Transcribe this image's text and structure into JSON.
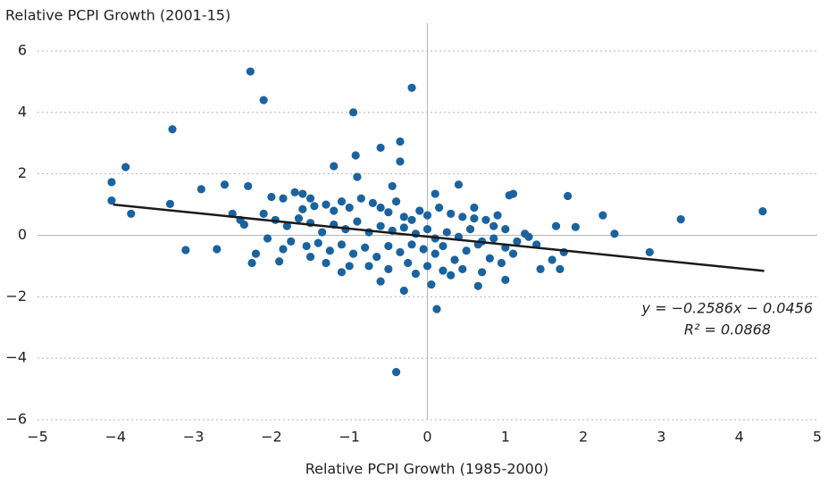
{
  "chart_data": {
    "type": "scatter",
    "y_axis_label": "Relative PCPI Growth (2001-15)",
    "x_axis_label": "Relative PCPI Growth (1985-2000)",
    "equation": "y = −0.2586x − 0.0456",
    "r_squared": "R² = 0.0868",
    "color": "#1a639f",
    "trend_color": "#1a1a1a",
    "grid": true,
    "xlim": [
      -5,
      5
    ],
    "ylim": [
      -6,
      6
    ],
    "xticks": [
      {
        "value": -5,
        "label": "−5"
      },
      {
        "value": -4,
        "label": "−4"
      },
      {
        "value": -3,
        "label": "−3"
      },
      {
        "value": -2,
        "label": "−2"
      },
      {
        "value": -1,
        "label": "−1"
      },
      0,
      1,
      2,
      3,
      4,
      5
    ],
    "yticks": [
      {
        "value": -6,
        "label": "−6"
      },
      {
        "value": -4,
        "label": "−4"
      },
      {
        "value": -2,
        "label": "−2"
      },
      0,
      2,
      4,
      6
    ],
    "trendline": {
      "x": [
        -4.03,
        4.32
      ],
      "values": [
        1.0,
        -1.16
      ]
    },
    "x": [
      -2.27,
      -2.1,
      -0.2,
      -0.95,
      -3.27,
      -0.35,
      -0.6,
      -0.35,
      -0.92,
      -3.87,
      -4.05,
      -4.05,
      -3.8,
      -3.3,
      -3.1,
      -2.9,
      -2.6,
      -2.7,
      -2.3,
      -2.25,
      -2.2,
      -1.9,
      -1.2,
      -0.9,
      -0.45,
      -0.4,
      0.12,
      -0.3,
      0.05,
      0.4,
      0.1,
      1.05,
      1.1,
      1.8,
      2.25,
      2.4,
      2.85,
      3.25,
      4.3,
      1.6,
      1.7,
      1.45,
      0.65,
      1.0,
      -0.6,
      -1.1,
      1.75,
      1.65,
      1.9,
      1.25,
      1.4,
      0.9,
      -2.0,
      -1.85,
      -1.7,
      -1.6,
      -1.5,
      -1.45,
      -1.3,
      -1.2,
      -1.1,
      -1.0,
      -0.85,
      -0.7,
      -0.6,
      -0.5,
      -0.3,
      -0.2,
      -0.1,
      0.0,
      0.15,
      0.3,
      0.45,
      0.6,
      0.75,
      0.85,
      1.0,
      -2.1,
      -1.95,
      -1.8,
      -1.65,
      -1.5,
      -1.35,
      -1.2,
      -1.05,
      -0.9,
      -0.75,
      -0.6,
      -0.45,
      -0.3,
      -0.15,
      0.0,
      0.1,
      0.25,
      0.4,
      0.55,
      0.7,
      0.85,
      1.0,
      1.15,
      -2.4,
      -2.5,
      -2.35,
      -1.75,
      -1.55,
      -1.4,
      -1.25,
      -1.1,
      -0.95,
      -0.8,
      -0.65,
      -0.5,
      -0.35,
      -0.2,
      -0.05,
      0.1,
      0.2,
      0.35,
      0.5,
      0.65,
      0.8,
      0.95,
      1.1,
      -1.5,
      -1.3,
      -1.0,
      -0.75,
      -0.5,
      -0.25,
      0.0,
      0.2,
      0.45,
      0.7,
      -1.85,
      -2.05,
      -1.6,
      -0.4,
      0.3,
      -0.15,
      0.6,
      1.3
    ],
    "values": [
      5.33,
      4.4,
      4.8,
      4.0,
      3.45,
      3.05,
      2.85,
      2.4,
      2.6,
      2.22,
      1.73,
      1.13,
      0.7,
      1.02,
      -0.48,
      1.5,
      1.65,
      -0.45,
      1.6,
      -0.9,
      -0.6,
      -0.85,
      2.25,
      1.9,
      1.6,
      -4.45,
      -2.4,
      -1.8,
      -1.6,
      1.65,
      1.35,
      1.3,
      1.35,
      1.28,
      0.65,
      0.05,
      -0.55,
      0.52,
      0.78,
      -0.8,
      -1.1,
      -1.1,
      -1.65,
      -1.45,
      -1.5,
      -1.2,
      -0.55,
      0.3,
      0.27,
      0.05,
      -0.3,
      0.65,
      1.25,
      1.2,
      1.4,
      1.35,
      1.2,
      0.95,
      1.0,
      0.8,
      1.1,
      0.9,
      1.2,
      1.05,
      0.9,
      0.75,
      0.6,
      0.5,
      0.8,
      0.65,
      0.9,
      0.7,
      0.6,
      0.9,
      0.5,
      0.3,
      0.2,
      0.7,
      0.5,
      0.3,
      0.55,
      0.4,
      0.1,
      0.35,
      0.2,
      0.45,
      0.1,
      0.3,
      0.15,
      0.25,
      0.05,
      0.2,
      -0.1,
      0.1,
      -0.05,
      0.2,
      -0.2,
      -0.1,
      -0.4,
      -0.2,
      0.5,
      0.7,
      0.35,
      -0.2,
      -0.35,
      -0.25,
      -0.5,
      -0.3,
      -0.6,
      -0.4,
      -0.7,
      -0.35,
      -0.55,
      -0.3,
      -0.45,
      -0.6,
      -0.35,
      -0.8,
      -0.5,
      -0.3,
      -0.75,
      -0.9,
      -0.6,
      -0.7,
      -0.9,
      -1.0,
      -1.0,
      -1.1,
      -0.9,
      -1.0,
      -1.15,
      -1.1,
      -1.2,
      -0.45,
      -0.1,
      0.85,
      1.1,
      -1.3,
      -1.25,
      0.55,
      -0.05
    ]
  }
}
